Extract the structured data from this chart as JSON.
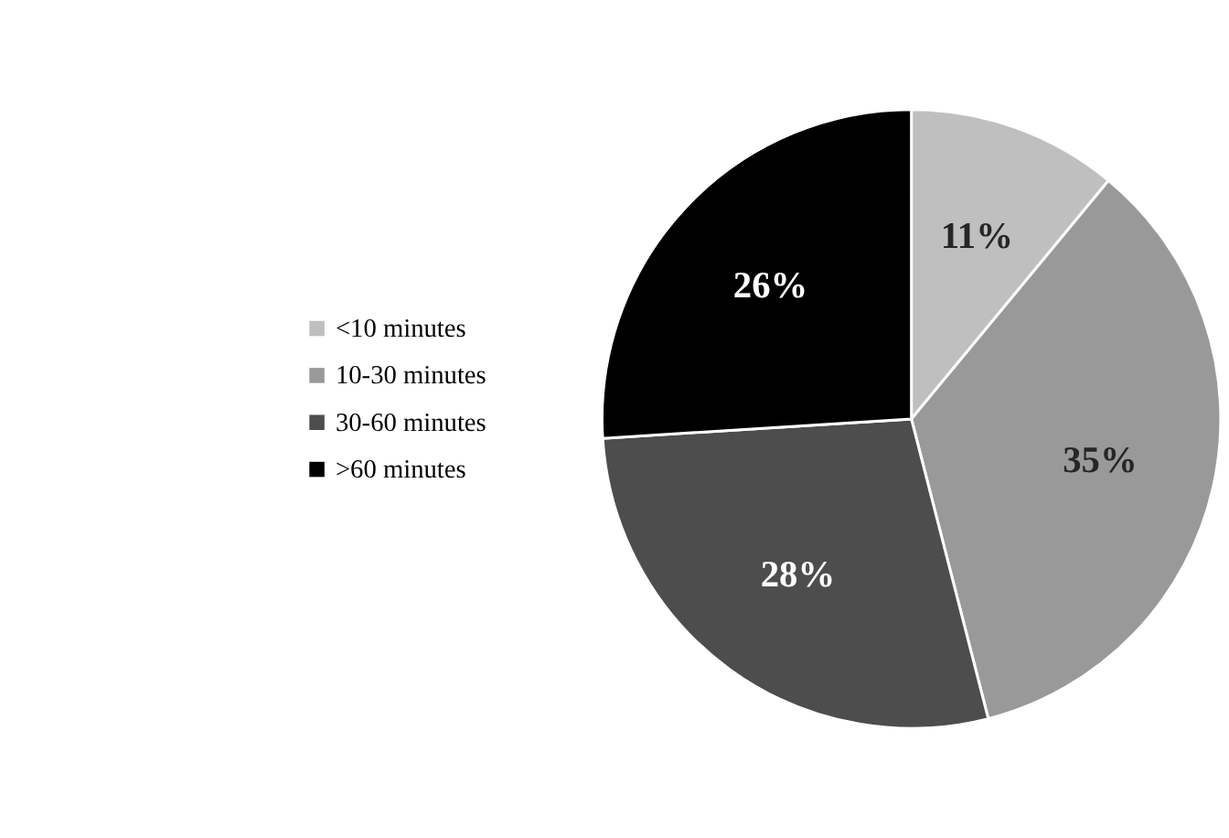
{
  "chart_data": {
    "type": "pie",
    "categories": [
      "<10 minutes",
      "10-30 minutes",
      "30-60 minutes",
      ">60 minutes"
    ],
    "values": [
      11,
      35,
      28,
      26
    ],
    "colors": [
      "#bfbfbf",
      "#999999",
      "#4d4d4d",
      "#000000"
    ],
    "value_labels": [
      "11%",
      "35%",
      "28%",
      "26%"
    ],
    "legend": "left"
  }
}
